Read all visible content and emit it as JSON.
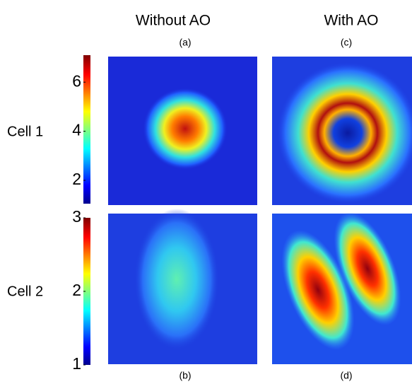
{
  "columns": [
    {
      "title": "Without AO"
    },
    {
      "title": "With AO"
    }
  ],
  "rows": [
    {
      "label": "Cell 1"
    },
    {
      "label": "Cell 2"
    }
  ],
  "panels": [
    "(a)",
    "(b)",
    "(c)",
    "(d)"
  ],
  "colorbars": [
    {
      "range": [
        1.05,
        7.1
      ],
      "ticks": [
        2,
        4,
        6
      ]
    },
    {
      "range": [
        1,
        3
      ],
      "ticks": [
        1,
        2,
        3
      ]
    }
  ]
}
